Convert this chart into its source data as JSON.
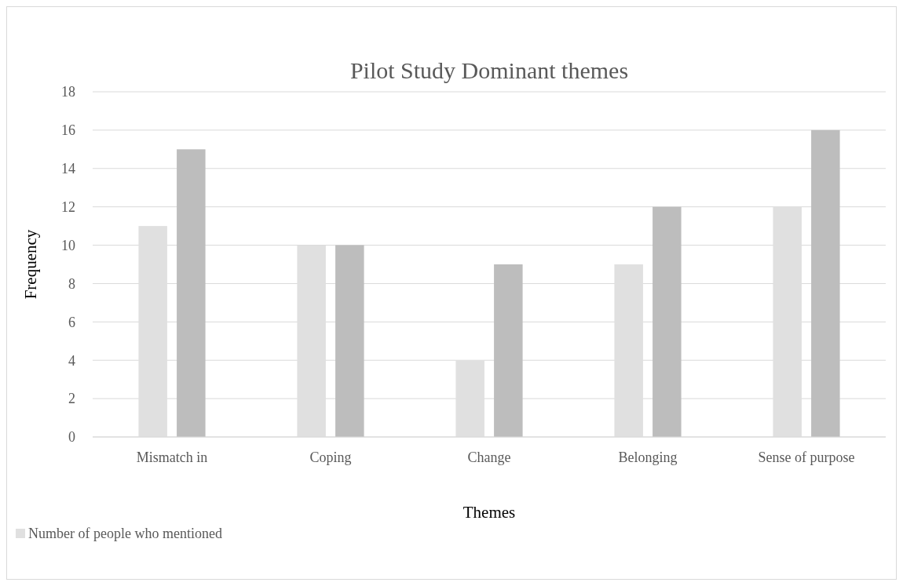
{
  "chart_data": {
    "type": "bar",
    "title": "Pilot Study Dominant themes",
    "xlabel": "Themes",
    "ylabel": "Frequency",
    "categories": [
      "Mismatch in",
      "Coping",
      "Change",
      "Belonging",
      "Sense of purpose"
    ],
    "series": [
      {
        "name": "Number of people who mentioned",
        "color": "#e0e0e0",
        "values": [
          11,
          10,
          4,
          9,
          12
        ]
      },
      {
        "color": "#bdbdbd",
        "values": [
          15,
          10,
          9,
          12,
          16
        ]
      }
    ],
    "ylim": [
      0,
      18
    ],
    "yticks": [
      0,
      2,
      4,
      6,
      8,
      10,
      12,
      14,
      16,
      18
    ],
    "grid": "y",
    "legend": "bottom left"
  }
}
